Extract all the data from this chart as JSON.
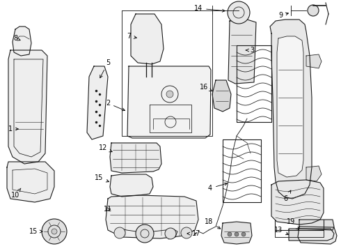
{
  "background_color": "#ffffff",
  "line_color": "#1a1a1a",
  "label_color": "#000000",
  "figsize": [
    4.9,
    3.6
  ],
  "dpi": 100,
  "font_size": 7.0
}
